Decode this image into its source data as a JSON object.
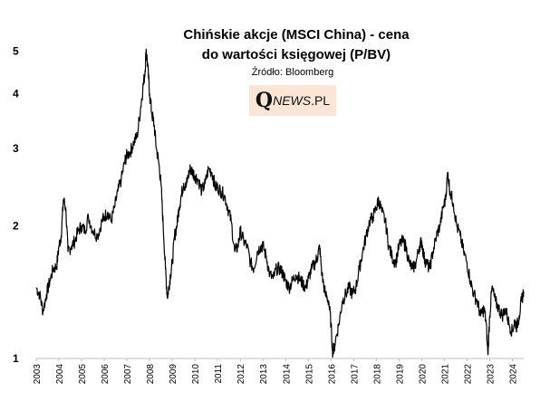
{
  "chart_data": {
    "type": "line",
    "title_lines": [
      "Chińskie akcje (MSCI China) - cena",
      "do wartości księgowej (P/BV)"
    ],
    "subtitle": "Źródło: Bloomberg",
    "yscale": "log",
    "ylim": [
      1,
      5.2
    ],
    "yticks": [
      "1",
      "2",
      "3",
      "4",
      "5"
    ],
    "xlim": [
      2003.0,
      2024.5
    ],
    "xticks": [
      "2003",
      "2004",
      "2005",
      "2006",
      "2007",
      "2008",
      "2009",
      "2010",
      "2011",
      "2012",
      "2013",
      "2014",
      "2015",
      "2016",
      "2017",
      "2018",
      "2019",
      "2020",
      "2021",
      "2022",
      "2023",
      "2024"
    ],
    "grid": false,
    "legend": "none",
    "line_color": "#000000",
    "series": [
      {
        "x": [
          2003.0,
          2003.15,
          2003.3,
          2003.45,
          2003.6,
          2003.75,
          2003.9,
          2004.0,
          2004.1,
          2004.2,
          2004.3,
          2004.4,
          2004.55,
          2004.7,
          2004.85,
          2005.0,
          2005.15,
          2005.3,
          2005.5,
          2005.7,
          2005.9,
          2006.0,
          2006.15,
          2006.3,
          2006.45,
          2006.6,
          2006.75,
          2006.9,
          2007.0,
          2007.15,
          2007.3,
          2007.45,
          2007.6,
          2007.7,
          2007.8,
          2007.85,
          2007.92,
          2008.0,
          2008.1,
          2008.2,
          2008.3,
          2008.4,
          2008.5,
          2008.6,
          2008.7,
          2008.78,
          2008.85,
          2008.92,
          2009.0,
          2009.1,
          2009.2,
          2009.3,
          2009.4,
          2009.5,
          2009.6,
          2009.7,
          2009.8,
          2009.9,
          2010.0,
          2010.15,
          2010.3,
          2010.45,
          2010.6,
          2010.75,
          2010.9,
          2011.0,
          2011.15,
          2011.3,
          2011.45,
          2011.6,
          2011.75,
          2011.9,
          2012.0,
          2012.15,
          2012.3,
          2012.45,
          2012.6,
          2012.75,
          2012.9,
          2013.0,
          2013.15,
          2013.3,
          2013.45,
          2013.6,
          2013.75,
          2013.9,
          2014.0,
          2014.15,
          2014.3,
          2014.45,
          2014.6,
          2014.75,
          2014.9,
          2015.0,
          2015.15,
          2015.3,
          2015.4,
          2015.5,
          2015.6,
          2015.75,
          2015.9,
          2016.0,
          2016.08,
          2016.2,
          2016.35,
          2016.5,
          2016.65,
          2016.8,
          2016.95,
          2017.1,
          2017.25,
          2017.4,
          2017.55,
          2017.7,
          2017.85,
          2018.0,
          2018.1,
          2018.25,
          2018.4,
          2018.55,
          2018.7,
          2018.85,
          2019.0,
          2019.15,
          2019.3,
          2019.45,
          2019.6,
          2019.75,
          2019.9,
          2020.0,
          2020.1,
          2020.2,
          2020.35,
          2020.5,
          2020.65,
          2020.8,
          2020.95,
          2021.05,
          2021.15,
          2021.25,
          2021.4,
          2021.55,
          2021.7,
          2021.85,
          2022.0,
          2022.15,
          2022.3,
          2022.45,
          2022.6,
          2022.75,
          2022.85,
          2022.92,
          2023.0,
          2023.1,
          2023.25,
          2023.4,
          2023.55,
          2023.7,
          2023.85,
          2024.0,
          2024.1,
          2024.2,
          2024.3,
          2024.4,
          2024.5
        ],
        "values": [
          1.45,
          1.4,
          1.28,
          1.4,
          1.5,
          1.6,
          1.62,
          1.8,
          1.9,
          2.3,
          2.2,
          1.75,
          1.8,
          1.85,
          1.95,
          2.0,
          1.95,
          2.1,
          1.95,
          1.9,
          2.05,
          2.1,
          2.15,
          2.05,
          2.2,
          2.4,
          2.55,
          2.8,
          2.9,
          2.95,
          3.1,
          3.2,
          3.7,
          4.1,
          4.5,
          5.05,
          4.6,
          4.0,
          3.6,
          3.4,
          3.0,
          2.8,
          2.5,
          2.0,
          1.6,
          1.38,
          1.45,
          1.55,
          1.65,
          1.9,
          2.0,
          2.2,
          2.35,
          2.5,
          2.45,
          2.6,
          2.7,
          2.65,
          2.6,
          2.55,
          2.4,
          2.5,
          2.7,
          2.65,
          2.45,
          2.45,
          2.4,
          2.35,
          2.2,
          2.05,
          1.75,
          1.8,
          1.95,
          1.85,
          1.8,
          1.65,
          1.6,
          1.75,
          1.8,
          1.8,
          1.7,
          1.55,
          1.52,
          1.6,
          1.6,
          1.55,
          1.5,
          1.45,
          1.5,
          1.55,
          1.52,
          1.48,
          1.45,
          1.52,
          1.6,
          1.65,
          1.7,
          1.8,
          1.55,
          1.4,
          1.35,
          1.2,
          1.02,
          1.1,
          1.2,
          1.35,
          1.4,
          1.45,
          1.4,
          1.45,
          1.6,
          1.75,
          1.9,
          2.05,
          2.1,
          2.2,
          2.3,
          2.15,
          2.05,
          1.8,
          1.7,
          1.65,
          1.8,
          1.85,
          1.8,
          1.65,
          1.6,
          1.65,
          1.8,
          1.85,
          1.7,
          1.65,
          1.6,
          1.75,
          1.9,
          2.0,
          2.2,
          2.3,
          2.65,
          2.4,
          2.25,
          2.0,
          1.9,
          1.75,
          1.65,
          1.5,
          1.4,
          1.35,
          1.25,
          1.3,
          1.2,
          1.02,
          1.25,
          1.45,
          1.35,
          1.3,
          1.25,
          1.3,
          1.2,
          1.15,
          1.22,
          1.18,
          1.25,
          1.35,
          1.42
        ]
      }
    ]
  },
  "logo": {
    "q": "Q",
    "news": "NEWS",
    "dot_pl": ".PL"
  }
}
